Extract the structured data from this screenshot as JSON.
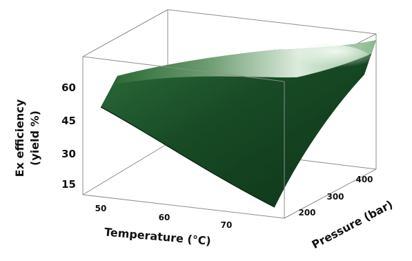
{
  "chart_data": {
    "type": "surface",
    "title": "",
    "ylabel": "Ex efficiency (yield %)",
    "xlabel": "Temperature (°C)",
    "zlabel": "Pressure (bar)",
    "ylabel_lines": [
      "Ex efficiency",
      "(yield %)"
    ],
    "x_ticks": [
      "50",
      "60",
      "70"
    ],
    "y_ticks": [
      "15",
      "30",
      "45",
      "60"
    ],
    "z_ticks": [
      "200",
      "300",
      "400"
    ],
    "x_range": [
      45,
      77
    ],
    "z_range": [
      150,
      420
    ],
    "y_range": [
      5,
      72
    ],
    "surface_corners": [
      {
        "temperature": 50,
        "pressure": 150,
        "yield": 50
      },
      {
        "temperature": 77,
        "pressure": 150,
        "yield": 6
      },
      {
        "temperature": 77,
        "pressure": 420,
        "yield": 55
      },
      {
        "temperature": 50,
        "pressure": 420,
        "yield": 72
      }
    ],
    "colors": {
      "surface_dark": "#0f3a1b",
      "surface_mid": "#1f5a2d",
      "surface_light": "#d9efdc",
      "box": "#8c8c8c"
    }
  }
}
